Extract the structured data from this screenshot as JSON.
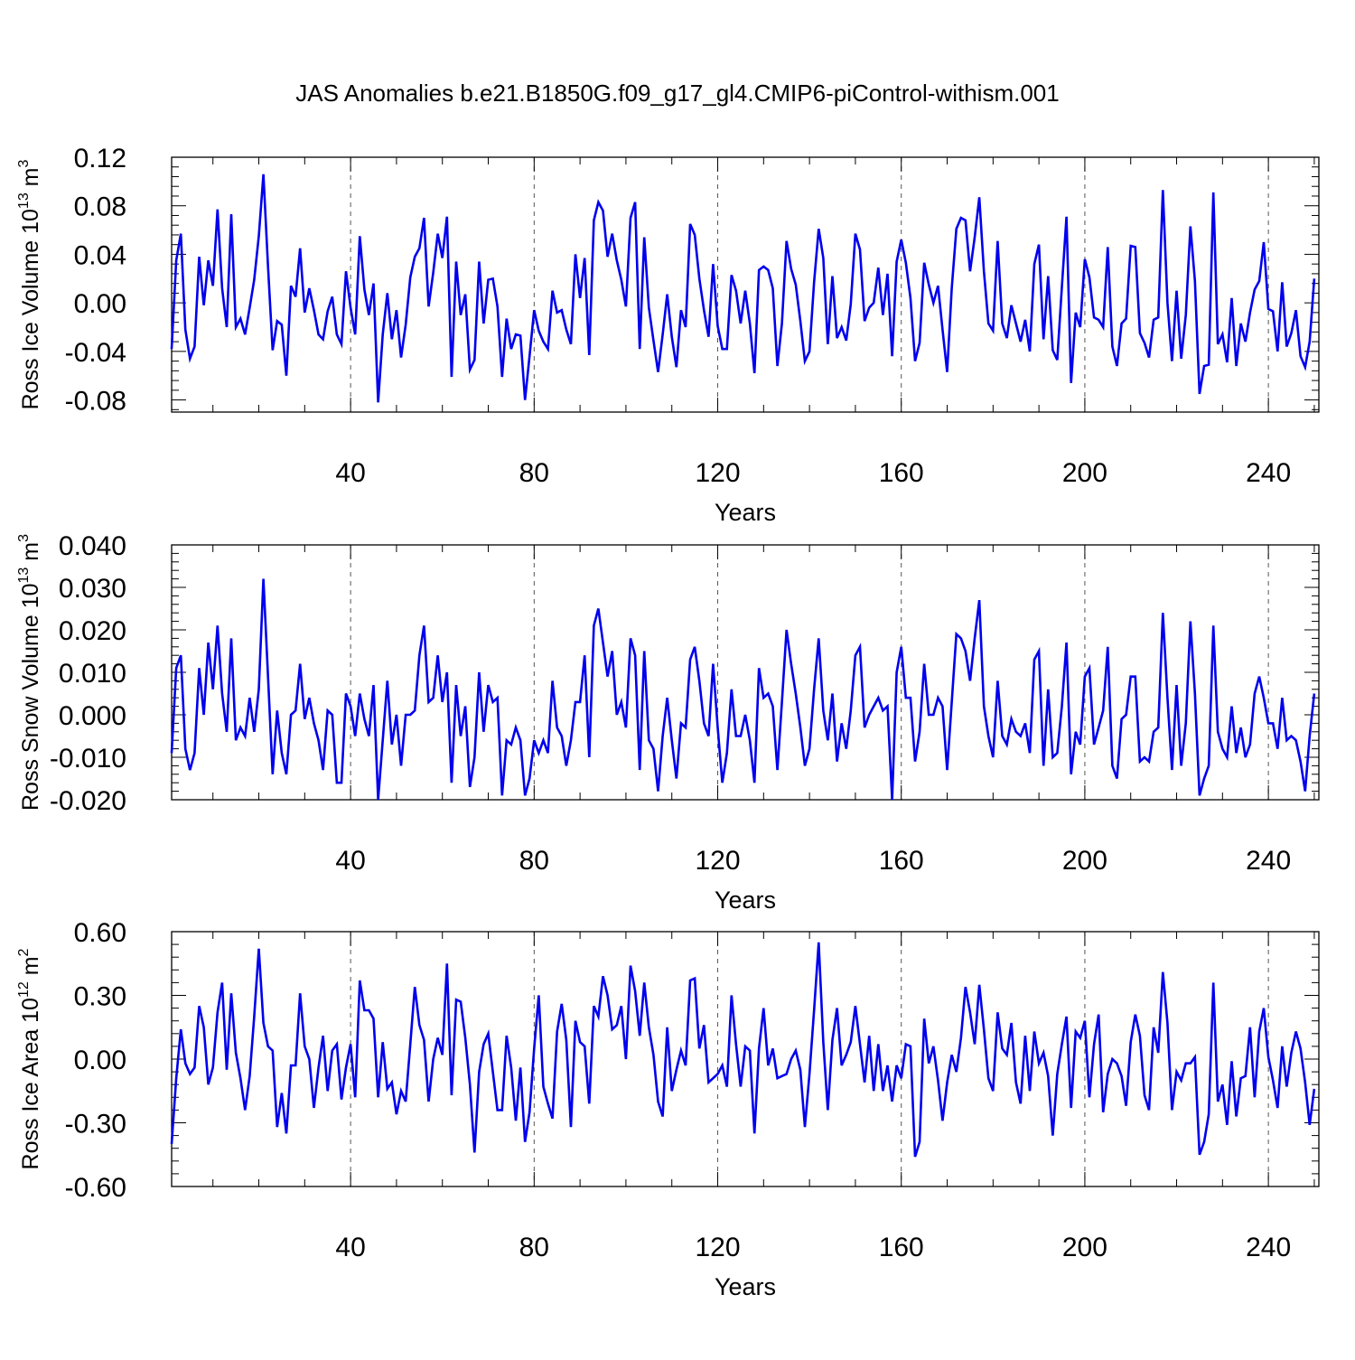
{
  "figure": {
    "title": "JAS Anomalies b.e21.B1850G.f09_g17_gl4.CMIP6-piControl-withism.001"
  },
  "chart_data": [
    {
      "type": "line",
      "ylabel": "Ross Ice Volume 10",
      "ylabel_exp": "13",
      "ylabel_unit": " m",
      "ylabel_unit_exp": "3",
      "xlabel": "Years",
      "xlim": [
        1,
        251
      ],
      "ylim": [
        -0.09,
        0.12
      ],
      "yticks": [
        0.12,
        0.08,
        0.04,
        0.0,
        -0.04,
        -0.08
      ],
      "ytick_labels": [
        "0.12",
        "0.08",
        "0.04",
        "0.00",
        "-0.04",
        "-0.08"
      ],
      "xticks": [
        40,
        80,
        120,
        160,
        200,
        240
      ],
      "xtick_labels": [
        "40",
        "80",
        "120",
        "160",
        "200",
        "240"
      ],
      "grid": "vertical dashed at major x ticks",
      "series": [
        {
          "name": "Ross Ice Volume",
          "color": "#0000ee",
          "x_start": 1,
          "values": [
            -0.038,
            0.035,
            0.057,
            -0.022,
            -0.046,
            -0.036,
            0.038,
            -0.002,
            0.035,
            0.014,
            0.077,
            0.012,
            -0.02,
            0.073,
            -0.02,
            -0.013,
            -0.026,
            -0.004,
            0.019,
            0.055,
            0.106,
            0.03,
            -0.039,
            -0.015,
            -0.018,
            -0.06,
            0.014,
            0.005,
            0.045,
            -0.008,
            0.012,
            -0.006,
            -0.026,
            -0.03,
            -0.007,
            0.005,
            -0.026,
            -0.034,
            0.026,
            -0.004,
            -0.026,
            0.055,
            0.011,
            -0.01,
            0.016,
            -0.082,
            -0.026,
            0.008,
            -0.03,
            -0.006,
            -0.045,
            -0.018,
            0.021,
            0.038,
            0.045,
            0.07,
            -0.003,
            0.025,
            0.057,
            0.037,
            0.071,
            -0.061,
            0.034,
            -0.01,
            0.007,
            -0.055,
            -0.047,
            0.034,
            -0.017,
            0.019,
            0.02,
            -0.003,
            -0.061,
            -0.013,
            -0.038,
            -0.026,
            -0.027,
            -0.08,
            -0.044,
            -0.006,
            -0.023,
            -0.032,
            -0.038,
            0.01,
            -0.008,
            -0.006,
            -0.022,
            -0.034,
            0.04,
            0.004,
            0.037,
            -0.043,
            0.068,
            0.083,
            0.076,
            0.038,
            0.057,
            0.035,
            0.019,
            -0.003,
            0.07,
            0.083,
            -0.038,
            0.054,
            -0.004,
            -0.031,
            -0.057,
            -0.026,
            0.007,
            -0.028,
            -0.053,
            -0.006,
            -0.02,
            0.065,
            0.056,
            0.02,
            -0.006,
            -0.028,
            0.032,
            -0.019,
            -0.038,
            -0.038,
            0.023,
            0.01,
            -0.017,
            0.01,
            -0.017,
            -0.058,
            0.027,
            0.03,
            0.027,
            0.012,
            -0.052,
            -0.017,
            0.051,
            0.028,
            0.015,
            -0.015,
            -0.048,
            -0.04,
            0.017,
            0.061,
            0.037,
            -0.034,
            0.022,
            -0.029,
            -0.02,
            -0.031,
            -0.001,
            0.057,
            0.044,
            -0.015,
            -0.004,
            0.0,
            0.029,
            -0.01,
            0.024,
            -0.044,
            0.034,
            0.052,
            0.033,
            0.004,
            -0.048,
            -0.033,
            0.033,
            0.015,
            0.0,
            0.014,
            -0.022,
            -0.057,
            0.012,
            0.061,
            0.07,
            0.068,
            0.026,
            0.054,
            0.087,
            0.026,
            -0.017,
            -0.023,
            0.051,
            -0.017,
            -0.029,
            -0.002,
            -0.017,
            -0.032,
            -0.014,
            -0.04,
            0.032,
            0.048,
            -0.03,
            0.022,
            -0.039,
            -0.047,
            0.013,
            0.071,
            -0.066,
            -0.008,
            -0.02,
            0.036,
            0.021,
            -0.012,
            -0.014,
            -0.02,
            0.046,
            -0.036,
            -0.052,
            -0.017,
            -0.013,
            0.047,
            0.046,
            -0.025,
            -0.033,
            -0.045,
            -0.014,
            -0.012,
            0.093,
            0.0,
            -0.048,
            0.01,
            -0.046,
            -0.01,
            0.063,
            0.018,
            -0.075,
            -0.052,
            -0.051,
            0.091,
            -0.034,
            -0.026,
            -0.049,
            0.004,
            -0.052,
            -0.017,
            -0.032,
            -0.008,
            0.011,
            0.018,
            0.05,
            -0.005,
            -0.007,
            -0.04,
            0.017,
            -0.036,
            -0.025,
            -0.006,
            -0.044,
            -0.053,
            -0.032,
            0.02
          ]
        }
      ]
    },
    {
      "type": "line",
      "ylabel": "Ross Snow Volume 10",
      "ylabel_exp": "13",
      "ylabel_unit": " m",
      "ylabel_unit_exp": "3",
      "xlabel": "Years",
      "xlim": [
        1,
        251
      ],
      "ylim": [
        -0.02,
        0.04
      ],
      "yticks": [
        0.04,
        0.03,
        0.02,
        0.01,
        0.0,
        -0.01,
        -0.02
      ],
      "ytick_labels": [
        "0.040",
        "0.030",
        "0.020",
        "0.010",
        "0.000",
        "-0.010",
        "-0.020"
      ],
      "xticks": [
        40,
        80,
        120,
        160,
        200,
        240
      ],
      "xtick_labels": [
        "40",
        "80",
        "120",
        "160",
        "200",
        "240"
      ],
      "grid": "vertical dashed at major x ticks",
      "series": [
        {
          "name": "Ross Snow Volume",
          "color": "#0000ee",
          "x_start": 1,
          "values": [
            -0.009,
            0.011,
            0.014,
            -0.008,
            -0.013,
            -0.009,
            0.011,
            0.0,
            0.017,
            0.006,
            0.021,
            0.005,
            -0.004,
            0.018,
            -0.006,
            -0.003,
            -0.005,
            0.004,
            -0.004,
            0.006,
            0.032,
            0.009,
            -0.014,
            0.001,
            -0.009,
            -0.014,
            0.0,
            0.001,
            0.012,
            -0.001,
            0.004,
            -0.002,
            -0.006,
            -0.013,
            0.001,
            0.0,
            -0.016,
            -0.016,
            0.005,
            0.002,
            -0.005,
            0.005,
            -0.001,
            -0.005,
            0.007,
            -0.02,
            -0.006,
            0.008,
            -0.007,
            0.0,
            -0.012,
            0.0,
            0.0,
            0.001,
            0.014,
            0.021,
            0.003,
            0.004,
            0.014,
            0.003,
            0.01,
            -0.016,
            0.007,
            -0.005,
            0.002,
            -0.017,
            -0.01,
            0.01,
            -0.004,
            0.007,
            0.003,
            0.004,
            -0.019,
            -0.006,
            -0.007,
            -0.003,
            -0.006,
            -0.019,
            -0.015,
            -0.006,
            -0.009,
            -0.006,
            -0.009,
            0.008,
            -0.003,
            -0.005,
            -0.012,
            -0.006,
            0.003,
            0.003,
            0.014,
            -0.01,
            0.021,
            0.025,
            0.017,
            0.009,
            0.015,
            0.0,
            0.003,
            -0.003,
            0.018,
            0.014,
            -0.013,
            0.015,
            -0.006,
            -0.008,
            -0.018,
            -0.005,
            0.004,
            -0.006,
            -0.015,
            -0.002,
            -0.003,
            0.013,
            0.016,
            0.008,
            -0.002,
            -0.005,
            0.012,
            -0.003,
            -0.016,
            -0.009,
            0.006,
            -0.005,
            -0.005,
            0.0,
            -0.006,
            -0.016,
            0.011,
            0.004,
            0.005,
            0.002,
            -0.013,
            0.003,
            0.02,
            0.012,
            0.005,
            -0.003,
            -0.012,
            -0.008,
            0.006,
            0.018,
            0.001,
            -0.006,
            0.005,
            -0.011,
            -0.002,
            -0.008,
            0.001,
            0.014,
            0.016,
            -0.003,
            0.0,
            0.002,
            0.004,
            0.001,
            0.002,
            -0.02,
            0.01,
            0.016,
            0.004,
            0.004,
            -0.011,
            -0.004,
            0.012,
            0.0,
            0.0,
            0.004,
            0.002,
            -0.013,
            0.003,
            0.019,
            0.018,
            0.015,
            0.008,
            0.018,
            0.027,
            0.002,
            -0.005,
            -0.01,
            0.008,
            -0.005,
            -0.007,
            -0.001,
            -0.004,
            -0.005,
            -0.002,
            -0.009,
            0.013,
            0.015,
            -0.012,
            0.006,
            -0.01,
            -0.009,
            0.002,
            0.017,
            -0.014,
            -0.004,
            -0.007,
            0.009,
            0.011,
            -0.007,
            -0.003,
            0.001,
            0.016,
            -0.012,
            -0.015,
            -0.001,
            0.0,
            0.009,
            0.009,
            -0.011,
            -0.01,
            -0.011,
            -0.004,
            -0.003,
            0.024,
            0.004,
            -0.013,
            0.007,
            -0.012,
            -0.002,
            0.022,
            0.005,
            -0.019,
            -0.015,
            -0.012,
            0.021,
            -0.004,
            -0.008,
            -0.01,
            0.002,
            -0.009,
            -0.003,
            -0.01,
            -0.007,
            0.005,
            0.009,
            0.004,
            -0.002,
            -0.002,
            -0.008,
            0.004,
            -0.006,
            -0.005,
            -0.006,
            -0.011,
            -0.018,
            -0.005,
            0.005
          ]
        }
      ]
    },
    {
      "type": "line",
      "ylabel": "Ross Ice Area 10",
      "ylabel_exp": "12",
      "ylabel_unit": " m",
      "ylabel_unit_exp": "2",
      "xlabel": "Years",
      "xlim": [
        1,
        251
      ],
      "ylim": [
        -0.6,
        0.6
      ],
      "yticks": [
        0.6,
        0.3,
        0.0,
        -0.3,
        -0.6
      ],
      "ytick_labels": [
        "0.60",
        "0.30",
        "0.00",
        "-0.30",
        "-0.60"
      ],
      "xticks": [
        40,
        80,
        120,
        160,
        200,
        240
      ],
      "xtick_labels": [
        "40",
        "80",
        "120",
        "160",
        "200",
        "240"
      ],
      "grid": "vertical dashed at major x ticks",
      "series": [
        {
          "name": "Ross Ice Area",
          "color": "#0000ee",
          "x_start": 1,
          "values": [
            -0.4,
            -0.09,
            0.14,
            -0.02,
            -0.07,
            -0.04,
            0.25,
            0.15,
            -0.12,
            -0.04,
            0.22,
            0.36,
            -0.05,
            0.31,
            0.03,
            -0.09,
            -0.24,
            -0.08,
            0.2,
            0.52,
            0.17,
            0.06,
            0.04,
            -0.32,
            -0.16,
            -0.35,
            -0.03,
            -0.03,
            0.31,
            0.06,
            0.0,
            -0.23,
            -0.04,
            0.11,
            -0.15,
            0.04,
            0.07,
            -0.19,
            -0.04,
            0.07,
            -0.18,
            0.37,
            0.23,
            0.23,
            0.19,
            -0.18,
            0.08,
            -0.14,
            -0.11,
            -0.26,
            -0.15,
            -0.2,
            0.07,
            0.34,
            0.16,
            0.09,
            -0.2,
            -0.0,
            0.1,
            0.02,
            0.45,
            -0.17,
            0.28,
            0.27,
            0.1,
            -0.12,
            -0.44,
            -0.06,
            0.07,
            0.12,
            -0.06,
            -0.24,
            -0.24,
            0.11,
            -0.04,
            -0.29,
            -0.04,
            -0.39,
            -0.25,
            0.05,
            0.3,
            -0.13,
            -0.21,
            -0.28,
            0.13,
            0.26,
            0.09,
            -0.32,
            0.18,
            0.08,
            0.06,
            -0.21,
            0.25,
            0.2,
            0.39,
            0.3,
            0.14,
            0.16,
            0.25,
            0.0,
            0.44,
            0.32,
            0.11,
            0.36,
            0.15,
            0.02,
            -0.2,
            -0.27,
            0.15,
            -0.15,
            -0.05,
            0.04,
            -0.03,
            0.37,
            0.38,
            0.05,
            0.16,
            -0.11,
            -0.09,
            -0.07,
            -0.03,
            -0.13,
            0.3,
            0.07,
            -0.13,
            0.06,
            0.04,
            -0.35,
            0.05,
            0.24,
            -0.03,
            0.05,
            -0.09,
            -0.08,
            -0.07,
            0.0,
            0.04,
            -0.05,
            -0.32,
            -0.07,
            0.23,
            0.55,
            0.08,
            -0.24,
            0.09,
            0.24,
            -0.03,
            0.02,
            0.08,
            0.25,
            0.07,
            -0.11,
            0.11,
            -0.15,
            0.07,
            -0.15,
            -0.03,
            -0.2,
            -0.03,
            -0.09,
            0.07,
            0.06,
            -0.46,
            -0.39,
            0.19,
            -0.02,
            0.06,
            -0.1,
            -0.29,
            -0.11,
            0.02,
            -0.06,
            0.1,
            0.34,
            0.22,
            0.07,
            0.35,
            0.14,
            -0.09,
            -0.15,
            0.22,
            0.05,
            0.02,
            0.17,
            -0.11,
            -0.21,
            0.11,
            -0.15,
            0.13,
            -0.02,
            0.03,
            -0.08,
            -0.36,
            -0.07,
            0.07,
            0.2,
            -0.23,
            0.13,
            0.1,
            0.18,
            -0.18,
            0.07,
            0.21,
            -0.25,
            -0.07,
            0.0,
            -0.02,
            -0.08,
            -0.22,
            0.08,
            0.21,
            0.11,
            -0.17,
            -0.24,
            0.15,
            0.03,
            0.41,
            0.17,
            -0.24,
            -0.06,
            -0.1,
            -0.02,
            -0.02,
            0.01,
            -0.45,
            -0.39,
            -0.26,
            0.36,
            -0.2,
            -0.12,
            -0.31,
            -0.01,
            -0.27,
            -0.09,
            -0.08,
            0.15,
            -0.18,
            0.13,
            0.24,
            0.01,
            -0.1,
            -0.23,
            0.06,
            -0.13,
            0.03,
            0.13,
            0.05,
            -0.11,
            -0.31,
            -0.14
          ]
        }
      ]
    }
  ]
}
